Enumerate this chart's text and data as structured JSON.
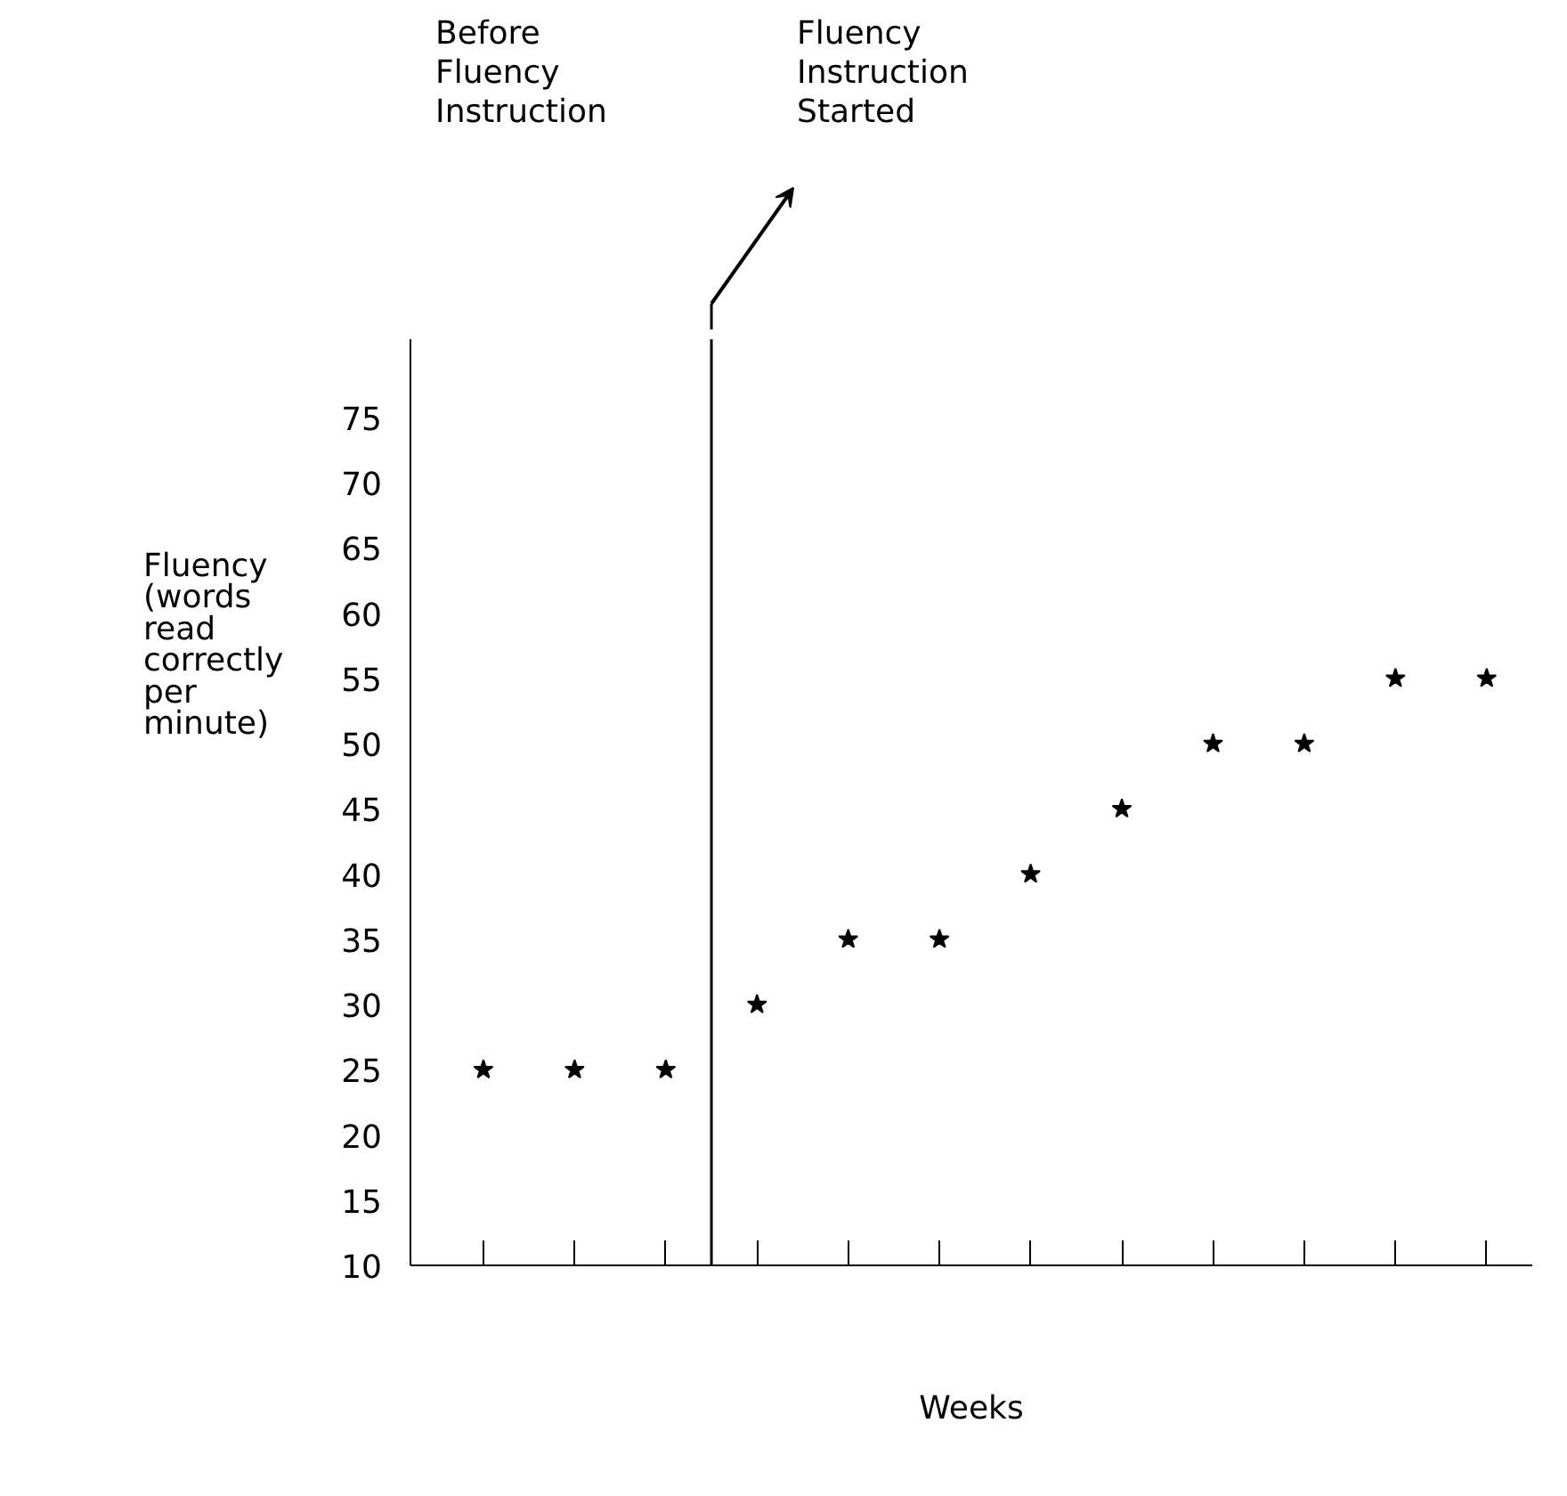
{
  "chart_data": {
    "type": "scatter",
    "xlabel": "Weeks",
    "ylabel": "Fluency (words read correctly per minute)",
    "categories": [
      null,
      null,
      null,
      null,
      null,
      null,
      null,
      null,
      null,
      null,
      null,
      null
    ],
    "values": [
      25,
      25,
      25,
      30,
      35,
      35,
      40,
      45,
      50,
      50,
      55,
      55
    ],
    "color": "#000000",
    "marker": "star",
    "ylim": [
      10,
      81
    ],
    "yticks": [
      10,
      15,
      20,
      25,
      30,
      35,
      40,
      45,
      50,
      55,
      60,
      65,
      70,
      75
    ],
    "tick_labels": "y",
    "grid": false,
    "annotations": [
      "Before Fluency Instruction",
      "Fluency Instruction Started"
    ]
  }
}
